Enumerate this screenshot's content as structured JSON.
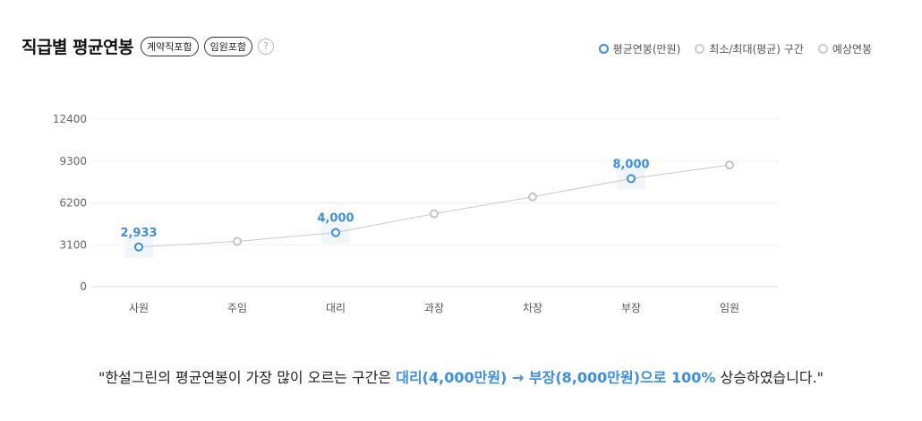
{
  "header": {
    "title": "직급별 평균연봉",
    "tags": [
      "계약직포함",
      "임원포함"
    ],
    "help": "?"
  },
  "legend": [
    {
      "label": "평균연봉(만원)",
      "color": "#3b8ee8"
    },
    {
      "label": "최소/최대(평균) 구간",
      "color": "#cccccc"
    },
    {
      "label": "예상연봉",
      "color": "#cccccc"
    }
  ],
  "chart_data": {
    "type": "line",
    "categories": [
      "사원",
      "주임",
      "대리",
      "과장",
      "차장",
      "부장",
      "임원"
    ],
    "series": [
      {
        "name": "평균연봉(만원)",
        "values": [
          2933,
          null,
          4000,
          null,
          null,
          8000,
          null
        ]
      },
      {
        "name": "예상연봉",
        "values": [
          null,
          3350,
          null,
          5400,
          6650,
          null,
          9000
        ]
      }
    ],
    "data_labels": {
      "0": "2,933",
      "2": "4,000",
      "5": "8,000"
    },
    "yticks": [
      0,
      3100,
      6200,
      9300,
      12400
    ],
    "ylim": [
      0,
      12400
    ],
    "xlabel": "",
    "ylabel": "",
    "grid": true
  },
  "summary": {
    "prefix": "\"한설그린의 평균연봉이 가장 많이 오르는 구간은 ",
    "highlight": "대리(4,000만원) → 부장(8,000만원)으로 100%",
    "suffix": " 상승하였습니다.\""
  }
}
